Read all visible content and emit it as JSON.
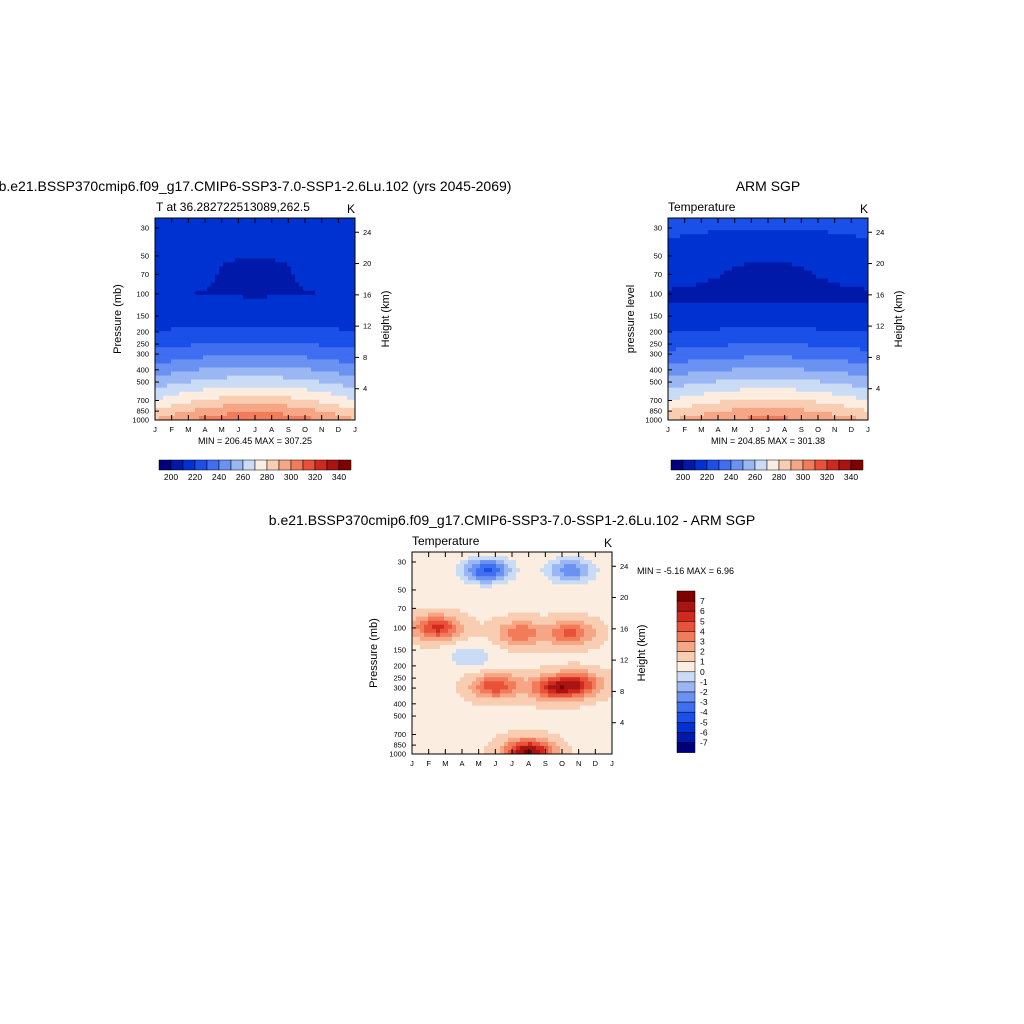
{
  "colors": {
    "bwr": [
      "#00007f",
      "#0019a8",
      "#0032d2",
      "#1a4fe8",
      "#3f6ff0",
      "#6a92f2",
      "#9ab6f3",
      "#c9dbf5",
      "#fbeee0",
      "#f9cdb2",
      "#f6a685",
      "#f27c5a",
      "#e8513a",
      "#d02a1e",
      "#a81410",
      "#7f0000"
    ]
  },
  "panel1": {
    "title": "b.e21.BSSP370cmip6.f09_g17.CMIP6-SSP3-7.0-SSP1-2.6Lu.102 (yrs 2045-2069)",
    "left_label": "T at 36.282722513089,262.5",
    "right_label": "K",
    "ylabel": "Pressure (mb)",
    "ylabel_right": "Height (km)",
    "minmax": "MIN = 206.45 MAX = 307.25",
    "colorbar_labels": [
      "200",
      "220",
      "240",
      "260",
      "280",
      "300",
      "320",
      "340"
    ]
  },
  "panel2": {
    "title": "ARM SGP",
    "left_label": "Temperature",
    "right_label": "K",
    "ylabel": "pressure level",
    "ylabel_right": "Height (km)",
    "minmax": "MIN = 204.85 MAX = 301.38",
    "colorbar_labels": [
      "200",
      "220",
      "240",
      "260",
      "280",
      "300",
      "320",
      "340"
    ]
  },
  "panel3": {
    "title": "b.e21.BSSP370cmip6.f09_g17.CMIP6-SSP3-7.0-SSP1-2.6Lu.102 - ARM SGP",
    "left_label": "Temperature",
    "right_label": "K",
    "ylabel": "Pressure (mb)",
    "ylabel_right": "Height (km)",
    "minmax": "MIN =  -5.16 MAX =   6.96",
    "colorbar_labels": [
      "7",
      "6",
      "5",
      "4",
      "3",
      "2",
      "1",
      "0",
      "-1",
      "-2",
      "-3",
      "-4",
      "-5",
      "-6",
      "-7"
    ]
  },
  "chart_data": [
    {
      "type": "heatmap",
      "title": "b.e21.BSSP370cmip6.f09_g17.CMIP6-SSP3-7.0-SSP1-2.6Lu.102 (yrs 2045-2069)",
      "x": [
        "J",
        "F",
        "M",
        "A",
        "M",
        "J",
        "J",
        "A",
        "S",
        "O",
        "N",
        "D",
        "J"
      ],
      "y_ticks": [
        "30",
        "50",
        "70",
        "100",
        "150",
        "200",
        "250",
        "300",
        "400",
        "500",
        "700",
        "850",
        "1000"
      ],
      "y_right_ticks": [
        "24",
        "20",
        "16",
        "12",
        "8",
        "4"
      ],
      "ylabel": "Pressure (mb)",
      "ylabel_right": "Height (km)",
      "units": "K",
      "min": 206.45,
      "max": 307.25,
      "contour_levels": [
        200,
        210,
        220,
        230,
        240,
        250,
        260,
        270,
        280,
        290,
        300,
        310,
        320,
        330,
        340
      ],
      "colorbar_ticks": [
        200,
        220,
        240,
        260,
        280,
        300,
        320,
        340
      ],
      "profile": [
        {
          "p": 30,
          "t": 217
        },
        {
          "p": 50,
          "t": 214
        },
        {
          "p": 100,
          "t": 210
        },
        {
          "p": 150,
          "t": 214
        },
        {
          "p": 200,
          "t": 222
        },
        {
          "p": 250,
          "t": 229
        },
        {
          "p": 300,
          "t": 236
        },
        {
          "p": 400,
          "t": 249
        },
        {
          "p": 500,
          "t": 260
        },
        {
          "p": 700,
          "t": 278
        },
        {
          "p": 850,
          "t": 290
        },
        {
          "p": 1000,
          "t": 300
        }
      ],
      "seasonal_amplitude": {
        "surface": 9,
        "stratosphere": -4
      }
    },
    {
      "type": "heatmap",
      "title": "ARM SGP",
      "x": [
        "J",
        "F",
        "M",
        "A",
        "M",
        "J",
        "J",
        "A",
        "S",
        "O",
        "N",
        "D",
        "J"
      ],
      "y_ticks": [
        "30",
        "50",
        "70",
        "100",
        "150",
        "200",
        "250",
        "300",
        "400",
        "500",
        "700",
        "850",
        "1000"
      ],
      "y_right_ticks": [
        "24",
        "20",
        "16",
        "12",
        "8",
        "4"
      ],
      "ylabel": "pressure level",
      "ylabel_right": "Height (km)",
      "units": "K",
      "min": 204.85,
      "max": 301.38,
      "contour_levels": [
        200,
        210,
        220,
        230,
        240,
        250,
        260,
        270,
        280,
        290,
        300,
        310,
        320,
        330,
        340
      ],
      "colorbar_ticks": [
        200,
        220,
        240,
        260,
        280,
        300,
        320,
        340
      ],
      "profile": [
        {
          "p": 30,
          "t": 221
        },
        {
          "p": 50,
          "t": 215
        },
        {
          "p": 100,
          "t": 208
        },
        {
          "p": 150,
          "t": 213
        },
        {
          "p": 200,
          "t": 221
        },
        {
          "p": 250,
          "t": 228
        },
        {
          "p": 300,
          "t": 235
        },
        {
          "p": 400,
          "t": 248
        },
        {
          "p": 500,
          "t": 259
        },
        {
          "p": 700,
          "t": 276
        },
        {
          "p": 850,
          "t": 287
        },
        {
          "p": 1000,
          "t": 296
        }
      ],
      "seasonal_amplitude": {
        "surface": 7,
        "stratosphere": -4
      }
    },
    {
      "type": "heatmap",
      "title": "b.e21.BSSP370cmip6.f09_g17.CMIP6-SSP3-7.0-SSP1-2.6Lu.102 - ARM SGP",
      "x": [
        "J",
        "F",
        "M",
        "A",
        "M",
        "J",
        "J",
        "A",
        "S",
        "O",
        "N",
        "D",
        "J"
      ],
      "y_ticks": [
        "30",
        "50",
        "70",
        "100",
        "150",
        "200",
        "250",
        "300",
        "400",
        "500",
        "700",
        "850",
        "1000"
      ],
      "y_right_ticks": [
        "24",
        "20",
        "16",
        "12",
        "8",
        "4"
      ],
      "ylabel": "Pressure (mb)",
      "ylabel_right": "Height (km)",
      "units": "K",
      "min": -5.16,
      "max": 6.96,
      "contour_levels": [
        -7,
        -6,
        -5,
        -4,
        -3,
        -2,
        -1,
        0,
        1,
        2,
        3,
        4,
        5,
        6,
        7
      ],
      "colorbar_ticks": [
        7,
        6,
        5,
        4,
        3,
        2,
        1,
        0,
        -1,
        -2,
        -3,
        -4,
        -5,
        -6,
        -7
      ],
      "features": [
        {
          "month": 4.5,
          "p": 35,
          "value": -5.0
        },
        {
          "month": 9.5,
          "p": 35,
          "value": -3.5
        },
        {
          "month": 1.5,
          "p": 100,
          "value": 4.5
        },
        {
          "month": 6.5,
          "p": 110,
          "value": 3.0
        },
        {
          "month": 9.5,
          "p": 110,
          "value": 3.5
        },
        {
          "month": 3.5,
          "p": 170,
          "value": -1.5
        },
        {
          "month": 5.0,
          "p": 290,
          "value": 4.0
        },
        {
          "month": 8.5,
          "p": 300,
          "value": 4.5
        },
        {
          "month": 10.0,
          "p": 280,
          "value": 4.0
        },
        {
          "month": 7.0,
          "p": 960,
          "value": 6.5
        }
      ]
    }
  ]
}
